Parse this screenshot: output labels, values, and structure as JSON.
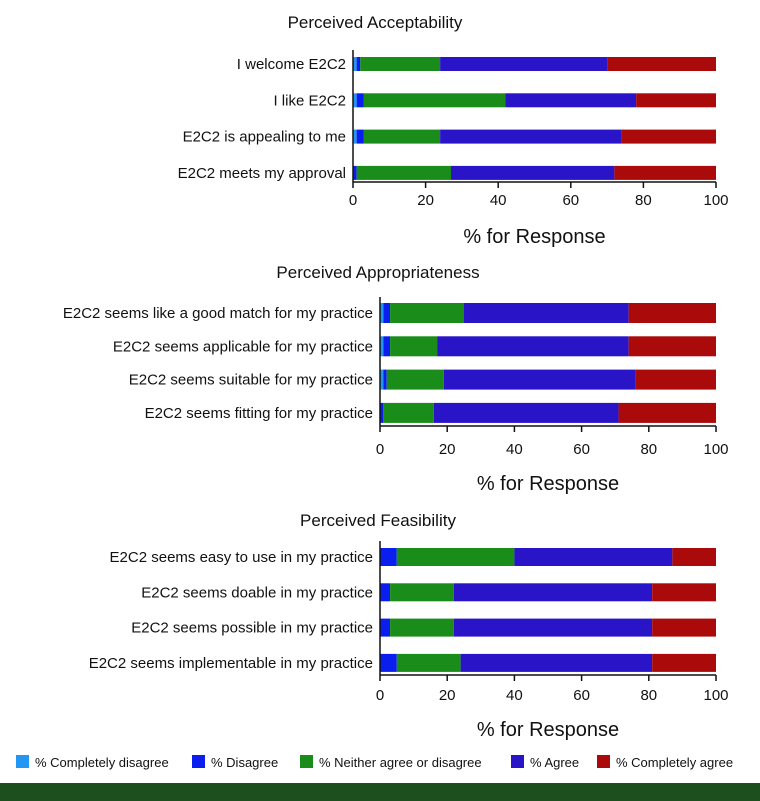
{
  "chart_data": {
    "type": "bar",
    "stacked": true,
    "orientation": "horizontal",
    "legend": {
      "position": "bottom",
      "items": [
        {
          "label": "% Completely disagree",
          "color": "#2196f3"
        },
        {
          "label": "% Disagree",
          "color": "#0a1ef0"
        },
        {
          "label": "% Neither agree or disagree",
          "color": "#1a8c1a"
        },
        {
          "label": "% Agree",
          "color": "#2a14c8"
        },
        {
          "label": "% Completely agree",
          "color": "#aa0a0a"
        }
      ]
    },
    "panels": [
      {
        "title": "Perceived Acceptability",
        "xlabel": "% for Response",
        "xlim": [
          0,
          100
        ],
        "ticks": [
          "0",
          "20",
          "40",
          "60",
          "80",
          "100"
        ],
        "categories": [
          "I welcome E2C2",
          "I like E2C2",
          "E2C2 is appealing to me",
          "E2C2 meets my approval"
        ],
        "series": [
          {
            "name": "% Completely disagree",
            "values": [
              1,
              1,
              1,
              0
            ]
          },
          {
            "name": "% Disagree",
            "values": [
              1,
              2,
              2,
              1
            ]
          },
          {
            "name": "% Neither agree or disagree",
            "values": [
              22,
              39,
              21,
              26
            ]
          },
          {
            "name": "% Agree",
            "values": [
              46,
              36,
              50,
              45
            ]
          },
          {
            "name": "% Completely agree",
            "values": [
              30,
              22,
              26,
              28
            ]
          }
        ]
      },
      {
        "title": "Perceived Appropriateness",
        "xlabel": "% for Response",
        "xlim": [
          0,
          100
        ],
        "ticks": [
          "0",
          "20",
          "40",
          "60",
          "80",
          "100"
        ],
        "categories": [
          "E2C2 seems like a good match for my practice",
          "E2C2 seems applicable for my practice",
          "E2C2 seems suitable for my practice",
          "E2C2 seems fitting for my practice"
        ],
        "series": [
          {
            "name": "% Completely disagree",
            "values": [
              1,
              1,
              1,
              0
            ]
          },
          {
            "name": "% Disagree",
            "values": [
              2,
              2,
              1,
              1
            ]
          },
          {
            "name": "% Neither agree or disagree",
            "values": [
              22,
              14,
              17,
              15
            ]
          },
          {
            "name": "% Agree",
            "values": [
              49,
              57,
              57,
              55
            ]
          },
          {
            "name": "% Completely agree",
            "values": [
              26,
              26,
              24,
              29
            ]
          }
        ]
      },
      {
        "title": "Perceived Feasibility",
        "xlabel": "% for Response",
        "xlim": [
          0,
          100
        ],
        "ticks": [
          "0",
          "20",
          "40",
          "60",
          "80",
          "100"
        ],
        "categories": [
          "E2C2 seems easy to use in my practice",
          "E2C2 seems doable in my practice",
          "E2C2 seems possible in my practice",
          "E2C2 seems implementable in my practice"
        ],
        "series": [
          {
            "name": "% Completely disagree",
            "values": [
              0,
              0,
              0,
              0
            ]
          },
          {
            "name": "% Disagree",
            "values": [
              5,
              3,
              3,
              5
            ]
          },
          {
            "name": "% Neither agree or disagree",
            "values": [
              35,
              19,
              19,
              19
            ]
          },
          {
            "name": "% Agree",
            "values": [
              47,
              59,
              59,
              57
            ]
          },
          {
            "name": "% Completely agree",
            "values": [
              13,
              19,
              19,
              19
            ]
          }
        ]
      }
    ]
  }
}
